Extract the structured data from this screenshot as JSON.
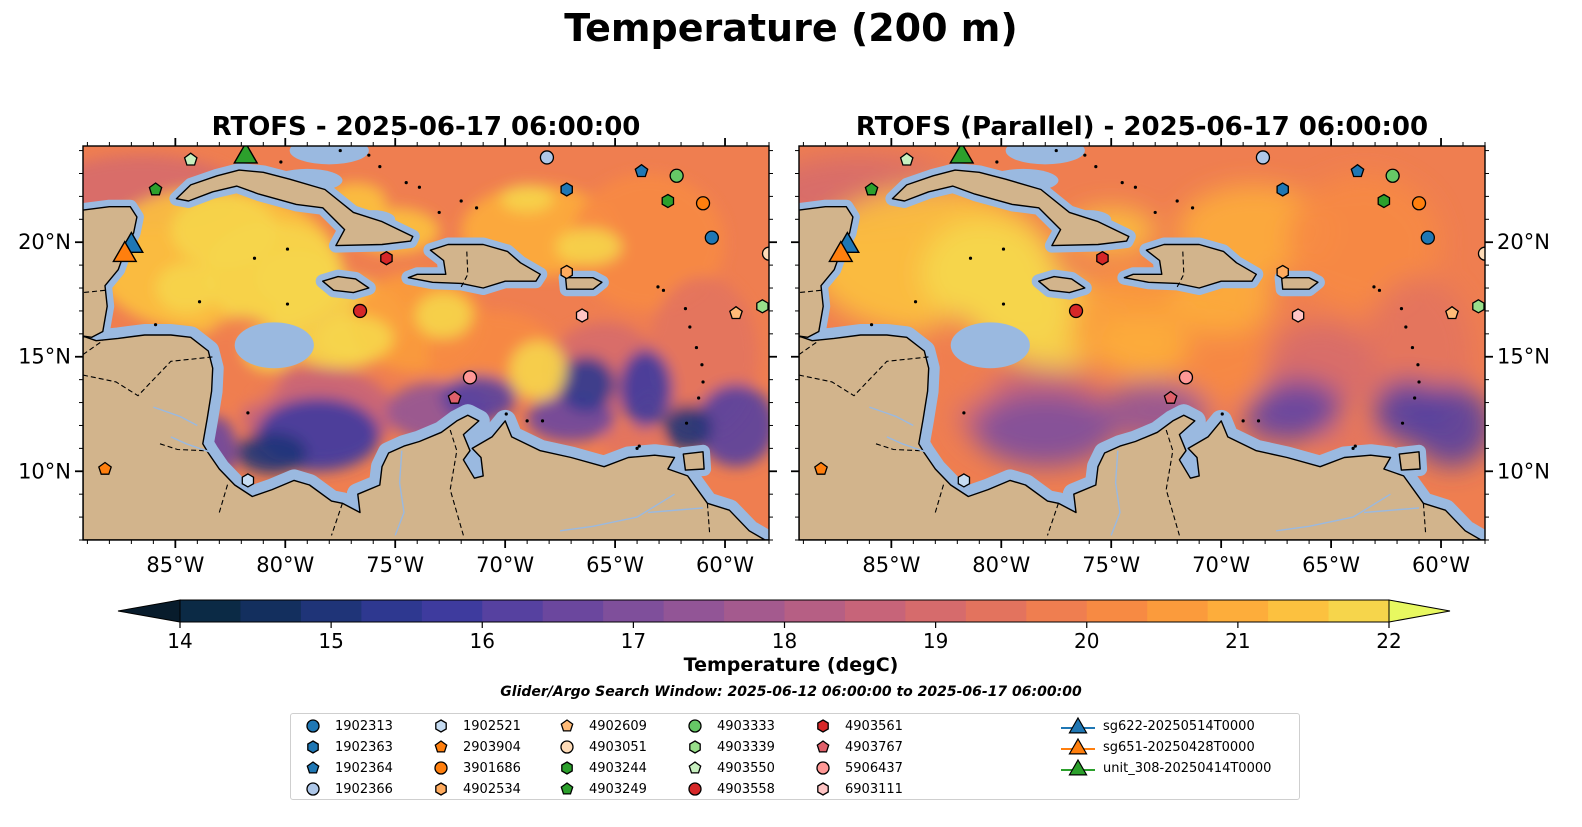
{
  "figure": {
    "title": "Temperature (200 m)",
    "search_window": "Glider/Argo Search Window: 2025-06-12 06:00:00 to 2025-06-17 06:00:00"
  },
  "panels": [
    {
      "title": "RTOFS - 2025-06-17 06:00:00",
      "colormap_variant": "strong"
    },
    {
      "title": "RTOFS (Parallel) - 2025-06-17 06:00:00",
      "colormap_variant": "smooth"
    }
  ],
  "map": {
    "lon_range": [
      -89.2,
      -58.0
    ],
    "lat_range": [
      7.0,
      24.2
    ],
    "lon_ticks": [
      "85°W",
      "80°W",
      "75°W",
      "70°W",
      "65°W",
      "60°W"
    ],
    "lon_values": [
      -85,
      -80,
      -75,
      -70,
      -65,
      -60
    ],
    "lat_ticks": [
      "10°N",
      "15°N",
      "20°N"
    ],
    "lat_values": [
      10,
      15,
      20
    ],
    "land_color": "#d2b48c",
    "shelf_color": "#9ab9e0",
    "deep_color": "#06263a"
  },
  "colorbar": {
    "label": "Temperature (degC)",
    "min": 14,
    "max": 22,
    "ticks": [
      "14",
      "15",
      "16",
      "17",
      "18",
      "19",
      "20",
      "21",
      "22"
    ],
    "colors": [
      "#0b2a45",
      "#132f5e",
      "#1f3478",
      "#2e3890",
      "#3e3b9e",
      "#5641a0",
      "#6b479e",
      "#7f4f9b",
      "#925596",
      "#a45a8e",
      "#b65f84",
      "#c76479",
      "#d66b6c",
      "#e3735e",
      "#ef7e50",
      "#f78a43",
      "#fb9b3c",
      "#fdad3b",
      "#fcc13f",
      "#f6d54b"
    ],
    "extend_low": "#081c2c",
    "extend_high": "#e8f860"
  },
  "legend": {
    "floats": [
      {
        "id": "1902313",
        "marker": "circle",
        "color": "#1f77b4"
      },
      {
        "id": "1902363",
        "marker": "hexagon",
        "color": "#1f77b4"
      },
      {
        "id": "1902364",
        "marker": "pentagon",
        "color": "#1f77b4"
      },
      {
        "id": "1902366",
        "marker": "circle",
        "color": "#aec7e8"
      },
      {
        "id": "1902521",
        "marker": "hexagon",
        "color": "#c6dcf2"
      },
      {
        "id": "2903904",
        "marker": "pentagon",
        "color": "#ff7f0e"
      },
      {
        "id": "3901686",
        "marker": "circle",
        "color": "#ff7f0e"
      },
      {
        "id": "4902534",
        "marker": "hexagon",
        "color": "#ffab5e"
      },
      {
        "id": "4902609",
        "marker": "pentagon",
        "color": "#ffbb78"
      },
      {
        "id": "4903051",
        "marker": "circle",
        "color": "#ffdcb8"
      },
      {
        "id": "4903244",
        "marker": "hexagon",
        "color": "#2ca02c"
      },
      {
        "id": "4903249",
        "marker": "pentagon",
        "color": "#2ca02c"
      },
      {
        "id": "4903333",
        "marker": "circle",
        "color": "#66c866"
      },
      {
        "id": "4903339",
        "marker": "hexagon",
        "color": "#98df8a"
      },
      {
        "id": "4903550",
        "marker": "pentagon",
        "color": "#c8f0c0"
      },
      {
        "id": "4903558",
        "marker": "circle",
        "color": "#d62728"
      },
      {
        "id": "4903561",
        "marker": "hexagon",
        "color": "#d62728"
      },
      {
        "id": "4903767",
        "marker": "pentagon",
        "color": "#e0606a"
      },
      {
        "id": "5906437",
        "marker": "circle",
        "color": "#ff9896"
      },
      {
        "id": "6903111",
        "marker": "hexagon",
        "color": "#ffc4c4"
      }
    ],
    "tracks": [
      {
        "id": "sg622-20250514T0000",
        "color": "#1f77b4"
      },
      {
        "id": "sg651-20250428T0000",
        "color": "#ff7f0e"
      },
      {
        "id": "unit_308-20250414T0000",
        "color": "#2ca02c"
      }
    ]
  },
  "observations": [
    {
      "id": "1902313",
      "lon": -60.6,
      "lat": 20.2
    },
    {
      "id": "1902363",
      "lon": -67.2,
      "lat": 22.3
    },
    {
      "id": "1902364",
      "lon": -63.8,
      "lat": 23.1
    },
    {
      "id": "1902366",
      "lon": -68.1,
      "lat": 23.7
    },
    {
      "id": "1902521",
      "lon": -81.7,
      "lat": 9.6
    },
    {
      "id": "2903904",
      "lon": -88.2,
      "lat": 10.1
    },
    {
      "id": "3901686",
      "lon": -61.0,
      "lat": 21.7
    },
    {
      "id": "4902534",
      "lon": -67.2,
      "lat": 18.7
    },
    {
      "id": "4902609",
      "lon": -59.5,
      "lat": 16.9
    },
    {
      "id": "4903051",
      "lon": -58.0,
      "lat": 19.5
    },
    {
      "id": "4903244",
      "lon": -62.6,
      "lat": 21.8
    },
    {
      "id": "4903249",
      "lon": -85.9,
      "lat": 22.3
    },
    {
      "id": "4903333",
      "lon": -62.2,
      "lat": 22.9
    },
    {
      "id": "4903339",
      "lon": -58.3,
      "lat": 17.2
    },
    {
      "id": "4903550",
      "lon": -84.3,
      "lat": 23.6
    },
    {
      "id": "4903558",
      "lon": -76.6,
      "lat": 17.0
    },
    {
      "id": "4903561",
      "lon": -75.4,
      "lat": 19.3
    },
    {
      "id": "4903767",
      "lon": -72.3,
      "lat": 13.2
    },
    {
      "id": "5906437",
      "lon": -71.6,
      "lat": 14.1
    },
    {
      "id": "6903111",
      "lon": -66.5,
      "lat": 16.8
    }
  ],
  "gliders": [
    {
      "id": "sg622-20250514T0000",
      "lon": -87.0,
      "lat": 19.9
    },
    {
      "id": "sg651-20250428T0000",
      "lon": -87.3,
      "lat": 19.5
    },
    {
      "id": "unit_308-20250414T0000",
      "lon": -81.8,
      "lat": 23.8
    }
  ]
}
